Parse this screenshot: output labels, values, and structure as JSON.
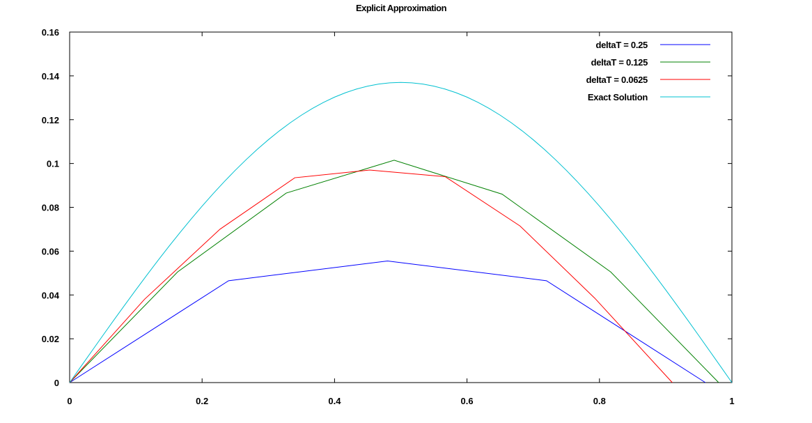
{
  "chart_data": {
    "type": "line",
    "title": "Explicit Approximation",
    "xlabel": "",
    "ylabel": "",
    "xlim": [
      0,
      1
    ],
    "ylim": [
      0,
      0.16
    ],
    "x_ticks": [
      0,
      0.2,
      0.4,
      0.6,
      0.8,
      1
    ],
    "x_tick_labels": [
      "0",
      "0.2",
      "0.4",
      "0.6",
      "0.8",
      "1"
    ],
    "y_ticks": [
      0,
      0.02,
      0.04,
      0.06,
      0.08,
      0.1,
      0.12,
      0.14,
      0.16
    ],
    "y_tick_labels": [
      "0",
      "0.02",
      "0.04",
      "0.06",
      "0.08",
      "0.1",
      "0.12",
      "0.14",
      "0.16"
    ],
    "grid": false,
    "legend_position": "top-right",
    "series": [
      {
        "name": "deltaT = 0.25",
        "color": "#0000ff",
        "points": [
          [
            0,
            0
          ],
          [
            0.24,
            0.0465
          ],
          [
            0.48,
            0.0555
          ],
          [
            0.72,
            0.0465
          ],
          [
            0.96,
            0
          ]
        ]
      },
      {
        "name": "deltaT = 0.125",
        "color": "#008000",
        "points": [
          [
            0,
            0
          ],
          [
            0.163,
            0.0505
          ],
          [
            0.327,
            0.0865
          ],
          [
            0.49,
            0.1015
          ],
          [
            0.653,
            0.086
          ],
          [
            0.817,
            0.0505
          ],
          [
            0.98,
            0
          ]
        ]
      },
      {
        "name": "deltaT = 0.0625",
        "color": "#ff0000",
        "points": [
          [
            0,
            0
          ],
          [
            0.113,
            0.038
          ],
          [
            0.227,
            0.07
          ],
          [
            0.34,
            0.0935
          ],
          [
            0.453,
            0.097
          ],
          [
            0.567,
            0.094
          ],
          [
            0.68,
            0.0715
          ],
          [
            0.793,
            0.0385
          ],
          [
            0.91,
            0
          ]
        ]
      },
      {
        "name": "Exact Solution",
        "color": "#00c0d0",
        "function": "0.137*sin(pi*x)",
        "samples": 60
      }
    ]
  }
}
